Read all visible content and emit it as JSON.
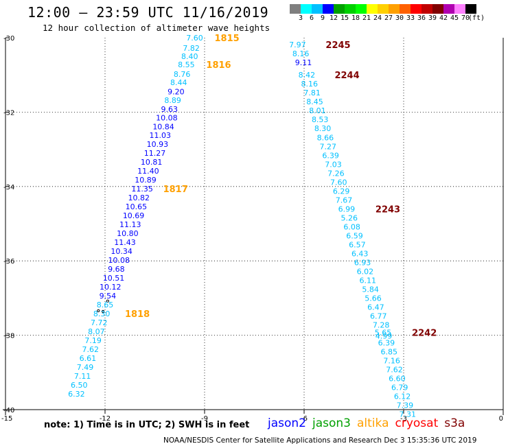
{
  "title": "12:00 – 23:59 UTC 11/16/2019",
  "subtitle": "12 hour collection of altimeter wave heights",
  "colorbar": {
    "colors": [
      "#7f7f7f",
      "#00ffff",
      "#00c0ff",
      "#0000ff",
      "#00a000",
      "#00d000",
      "#00ff00",
      "#ffff00",
      "#ffd000",
      "#ffa000",
      "#ff6000",
      "#ff0000",
      "#c00000",
      "#800000",
      "#b000b0",
      "#ff80ff",
      "#000000"
    ],
    "labels": [
      "3",
      "6",
      "9",
      "12",
      "15",
      "18",
      "21",
      "24",
      "27",
      "30",
      "33",
      "36",
      "39",
      "42",
      "45",
      "70",
      "(ft)"
    ]
  },
  "axes": {
    "x_ticks": [
      {
        "value": -15,
        "label": "-15"
      },
      {
        "value": -12,
        "label": "-12"
      },
      {
        "value": -9,
        "label": "-9"
      },
      {
        "value": -6,
        "label": "-6"
      },
      {
        "value": -3,
        "label": "-3"
      },
      {
        "value": 0,
        "label": "0"
      }
    ],
    "y_ticks": [
      {
        "value": -30,
        "label": "-30"
      },
      {
        "value": -32,
        "label": "-32"
      },
      {
        "value": -34,
        "label": "-34"
      },
      {
        "value": -36,
        "label": "-36"
      },
      {
        "value": -38,
        "label": "-38"
      },
      {
        "value": -40,
        "label": "-40"
      }
    ],
    "xlim": [
      -15,
      0
    ],
    "ylim": [
      -40,
      -30
    ],
    "grid": "dotted"
  },
  "chart_data": {
    "type": "scatter",
    "units": "ft",
    "tracks": [
      {
        "points": [
          {
            "lon": -9.3,
            "lat": -30.0,
            "swh": "7.60"
          },
          {
            "lon": -9.4,
            "lat": -30.28,
            "swh": "7.82"
          },
          {
            "lon": -9.45,
            "lat": -30.5,
            "swh": "8.40"
          },
          {
            "lon": -9.55,
            "lat": -30.72,
            "swh": "8.55"
          },
          {
            "lon": -9.68,
            "lat": -30.98,
            "swh": "8.76"
          },
          {
            "lon": -9.78,
            "lat": -31.2,
            "swh": "8.44"
          },
          {
            "lon": -9.86,
            "lat": -31.45,
            "swh": "9.20"
          },
          {
            "lon": -9.96,
            "lat": -31.68,
            "swh": "8.89"
          },
          {
            "lon": -10.06,
            "lat": -31.92,
            "swh": "9.63"
          },
          {
            "lon": -10.14,
            "lat": -32.15,
            "swh": "10.08"
          },
          {
            "lon": -10.24,
            "lat": -32.39,
            "swh": "10.84"
          },
          {
            "lon": -10.34,
            "lat": -32.62,
            "swh": "11.03"
          },
          {
            "lon": -10.42,
            "lat": -32.86,
            "swh": "10.93"
          },
          {
            "lon": -10.5,
            "lat": -33.1,
            "swh": "11.27"
          },
          {
            "lon": -10.6,
            "lat": -33.34,
            "swh": "10.81"
          },
          {
            "lon": -10.7,
            "lat": -33.58,
            "swh": "11.40"
          },
          {
            "lon": -10.78,
            "lat": -33.82,
            "swh": "10.89"
          },
          {
            "lon": -10.88,
            "lat": -34.06,
            "swh": "11.35"
          },
          {
            "lon": -10.98,
            "lat": -34.3,
            "swh": "10.82"
          },
          {
            "lon": -11.06,
            "lat": -34.54,
            "swh": "10.65"
          },
          {
            "lon": -11.14,
            "lat": -34.78,
            "swh": "10.69"
          },
          {
            "lon": -11.24,
            "lat": -35.02,
            "swh": "11.13"
          },
          {
            "lon": -11.32,
            "lat": -35.26,
            "swh": "10.80"
          },
          {
            "lon": -11.4,
            "lat": -35.5,
            "swh": "11.43"
          },
          {
            "lon": -11.5,
            "lat": -35.74,
            "swh": "10.34"
          },
          {
            "lon": -11.58,
            "lat": -35.98,
            "swh": "10.08"
          },
          {
            "lon": -11.66,
            "lat": -36.22,
            "swh": "9.68"
          },
          {
            "lon": -11.74,
            "lat": -36.46,
            "swh": "10.51"
          },
          {
            "lon": -11.84,
            "lat": -36.7,
            "swh": "10.12"
          },
          {
            "lon": -11.92,
            "lat": -36.94,
            "swh": "9.54"
          },
          {
            "lon": -12.0,
            "lat": -37.18,
            "swh": "8.65"
          },
          {
            "lon": -12.1,
            "lat": -37.42,
            "swh": "8.30"
          },
          {
            "lon": -12.18,
            "lat": -37.66,
            "swh": "7.72"
          },
          {
            "lon": -12.26,
            "lat": -37.9,
            "swh": "8.07"
          },
          {
            "lon": -12.36,
            "lat": -38.14,
            "swh": "7.19"
          },
          {
            "lon": -12.44,
            "lat": -38.38,
            "swh": "7.62"
          },
          {
            "lon": -12.52,
            "lat": -38.62,
            "swh": "6.61"
          },
          {
            "lon": -12.6,
            "lat": -38.86,
            "swh": "7.49"
          },
          {
            "lon": -12.68,
            "lat": -39.1,
            "swh": "7.11"
          },
          {
            "lon": -12.78,
            "lat": -39.34,
            "swh": "6.50"
          },
          {
            "lon": -12.86,
            "lat": -39.58,
            "swh": "6.32"
          }
        ],
        "revs": [
          {
            "label": "1815",
            "lon": -8.7,
            "lat": -30.0
          },
          {
            "label": "1816",
            "lon": -8.95,
            "lat": -30.72
          },
          {
            "label": "1817",
            "lon": -10.25,
            "lat": -34.06
          },
          {
            "label": "1818",
            "lon": -11.4,
            "lat": -37.42
          }
        ]
      },
      {
        "points": [
          {
            "lon": -6.2,
            "lat": -30.18,
            "swh": "7.97"
          },
          {
            "lon": -6.1,
            "lat": -30.42,
            "swh": "8.16"
          },
          {
            "lon": -6.02,
            "lat": -30.66,
            "swh": "9.11"
          },
          {
            "lon": -5.92,
            "lat": -31.0,
            "swh": "8.42"
          },
          {
            "lon": -5.84,
            "lat": -31.24,
            "swh": "8.16"
          },
          {
            "lon": -5.76,
            "lat": -31.48,
            "swh": "7.81"
          },
          {
            "lon": -5.68,
            "lat": -31.72,
            "swh": "8.45"
          },
          {
            "lon": -5.6,
            "lat": -31.96,
            "swh": "8.01"
          },
          {
            "lon": -5.52,
            "lat": -32.2,
            "swh": "8.53"
          },
          {
            "lon": -5.44,
            "lat": -32.44,
            "swh": "8.30"
          },
          {
            "lon": -5.36,
            "lat": -32.68,
            "swh": "8.66"
          },
          {
            "lon": -5.28,
            "lat": -32.92,
            "swh": "7.27"
          },
          {
            "lon": -5.2,
            "lat": -33.16,
            "swh": "6.39"
          },
          {
            "lon": -5.12,
            "lat": -33.4,
            "swh": "7.03"
          },
          {
            "lon": -5.04,
            "lat": -33.64,
            "swh": "7.26"
          },
          {
            "lon": -4.96,
            "lat": -33.88,
            "swh": "7.60"
          },
          {
            "lon": -4.88,
            "lat": -34.12,
            "swh": "6.29"
          },
          {
            "lon": -4.8,
            "lat": -34.36,
            "swh": "7.67"
          },
          {
            "lon": -4.72,
            "lat": -34.6,
            "swh": "6.99"
          },
          {
            "lon": -4.64,
            "lat": -34.84,
            "swh": "5.26"
          },
          {
            "lon": -4.56,
            "lat": -35.08,
            "swh": "6.08"
          },
          {
            "lon": -4.48,
            "lat": -35.32,
            "swh": "6.59"
          },
          {
            "lon": -4.4,
            "lat": -35.56,
            "swh": "6.57"
          },
          {
            "lon": -4.32,
            "lat": -35.8,
            "swh": "6.43"
          },
          {
            "lon": -4.24,
            "lat": -36.04,
            "swh": "6.93"
          },
          {
            "lon": -4.16,
            "lat": -36.28,
            "swh": "6.02"
          },
          {
            "lon": -4.08,
            "lat": -36.52,
            "swh": "6.11"
          },
          {
            "lon": -4.0,
            "lat": -36.76,
            "swh": "5.84"
          },
          {
            "lon": -3.92,
            "lat": -37.0,
            "swh": "5.66"
          },
          {
            "lon": -3.84,
            "lat": -37.24,
            "swh": "6.47"
          },
          {
            "lon": -3.76,
            "lat": -37.48,
            "swh": "6.77"
          },
          {
            "lon": -3.68,
            "lat": -37.72,
            "swh": "7.28"
          },
          {
            "lon": -3.62,
            "lat": -37.92,
            "swh": "5.65"
          },
          {
            "lon": -3.6,
            "lat": -38.02,
            "swh": "4.99"
          },
          {
            "lon": -3.52,
            "lat": -38.2,
            "swh": "6.39"
          },
          {
            "lon": -3.44,
            "lat": -38.44,
            "swh": "6.85"
          },
          {
            "lon": -3.36,
            "lat": -38.68,
            "swh": "7.16"
          },
          {
            "lon": -3.28,
            "lat": -38.92,
            "swh": "7.62"
          },
          {
            "lon": -3.2,
            "lat": -39.16,
            "swh": "6.60"
          },
          {
            "lon": -3.12,
            "lat": -39.4,
            "swh": "6.79"
          },
          {
            "lon": -3.04,
            "lat": -39.64,
            "swh": "6.12"
          },
          {
            "lon": -2.96,
            "lat": -39.88,
            "swh": "7.39"
          },
          {
            "lon": -2.88,
            "lat": -40.12,
            "swh": "7.31"
          }
        ],
        "revs": [
          {
            "label": "2245",
            "lon": -5.35,
            "lat": -30.18
          },
          {
            "label": "2244",
            "lon": -5.08,
            "lat": -31.0
          },
          {
            "label": "2243",
            "lon": -3.85,
            "lat": -34.6
          },
          {
            "label": "2242",
            "lon": -2.75,
            "lat": -37.92
          }
        ]
      }
    ],
    "land": [
      {
        "lon": -11.92,
        "lat": -37.08
      },
      {
        "lon": -12.2,
        "lat": -37.34
      },
      {
        "lon": -12.06,
        "lat": -37.36
      }
    ]
  },
  "colors": {
    "track_jason2": "#0000ff",
    "track_jason3": "#00a000",
    "track_altika": "#ffa000",
    "track_cryosat": "#ff0000",
    "track_s3a": "#800000",
    "swh_low": "#00c0ff",
    "swh_mid": "#0000ff",
    "swh_high": "#00a000",
    "rev_color_a": "#ffa000",
    "rev_color_b": "#800000"
  },
  "note": "note: 1) Time is in UTC; 2) SWH is in feet",
  "legend": [
    {
      "label": "jason2",
      "color": "#0000ff"
    },
    {
      "label": "jason3",
      "color": "#00a000"
    },
    {
      "label": "altika",
      "color": "#ffa000"
    },
    {
      "label": "cryosat",
      "color": "#ff0000"
    },
    {
      "label": "s3a",
      "color": "#800000"
    }
  ],
  "credit": "NOAA/NESDIS Center for Satellite Applications and Research     Dec  3 15:35:36 UTC 2019"
}
